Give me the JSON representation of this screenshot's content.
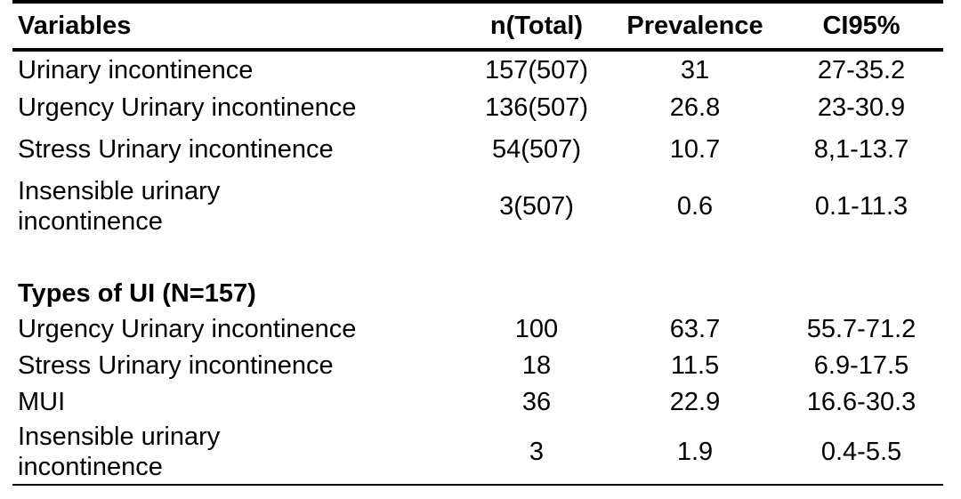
{
  "table": {
    "headers": {
      "variables": "Variables",
      "n_total": "n(Total)",
      "prevalence": "Prevalence",
      "ci95": "CI95%"
    },
    "rows": [
      {
        "label": "Urinary incontinence",
        "n": "157(507)",
        "prevalence": "31",
        "ci": "27-35.2"
      },
      {
        "label": "Urgency Urinary incontinence",
        "n": "136(507)",
        "prevalence": "26.8",
        "ci": "23-30.9"
      },
      {
        "label": "Stress Urinary incontinence",
        "n": "54(507)",
        "prevalence": "10.7",
        "ci": "8,1-13.7"
      },
      {
        "label_line1": "Insensible urinary",
        "label_line2": "incontinence",
        "n": "3(507)",
        "prevalence": "0.6",
        "ci": "0.1-11.3"
      }
    ],
    "section_title": "Types of UI (N=157)",
    "types_rows": [
      {
        "label": "Urgency Urinary incontinence",
        "n": "100",
        "prevalence": "63.7",
        "ci": "55.7-71.2"
      },
      {
        "label": "Stress Urinary incontinence",
        "n": "18",
        "prevalence": "11.5",
        "ci": "6.9-17.5"
      },
      {
        "label": "MUI",
        "n": "36",
        "prevalence": "22.9",
        "ci": "16.6-30.3"
      },
      {
        "label_line1": "Insensible urinary",
        "label_line2": "incontinence",
        "n": "3",
        "prevalence": "1.9",
        "ci": "0.4-5.5"
      }
    ]
  }
}
